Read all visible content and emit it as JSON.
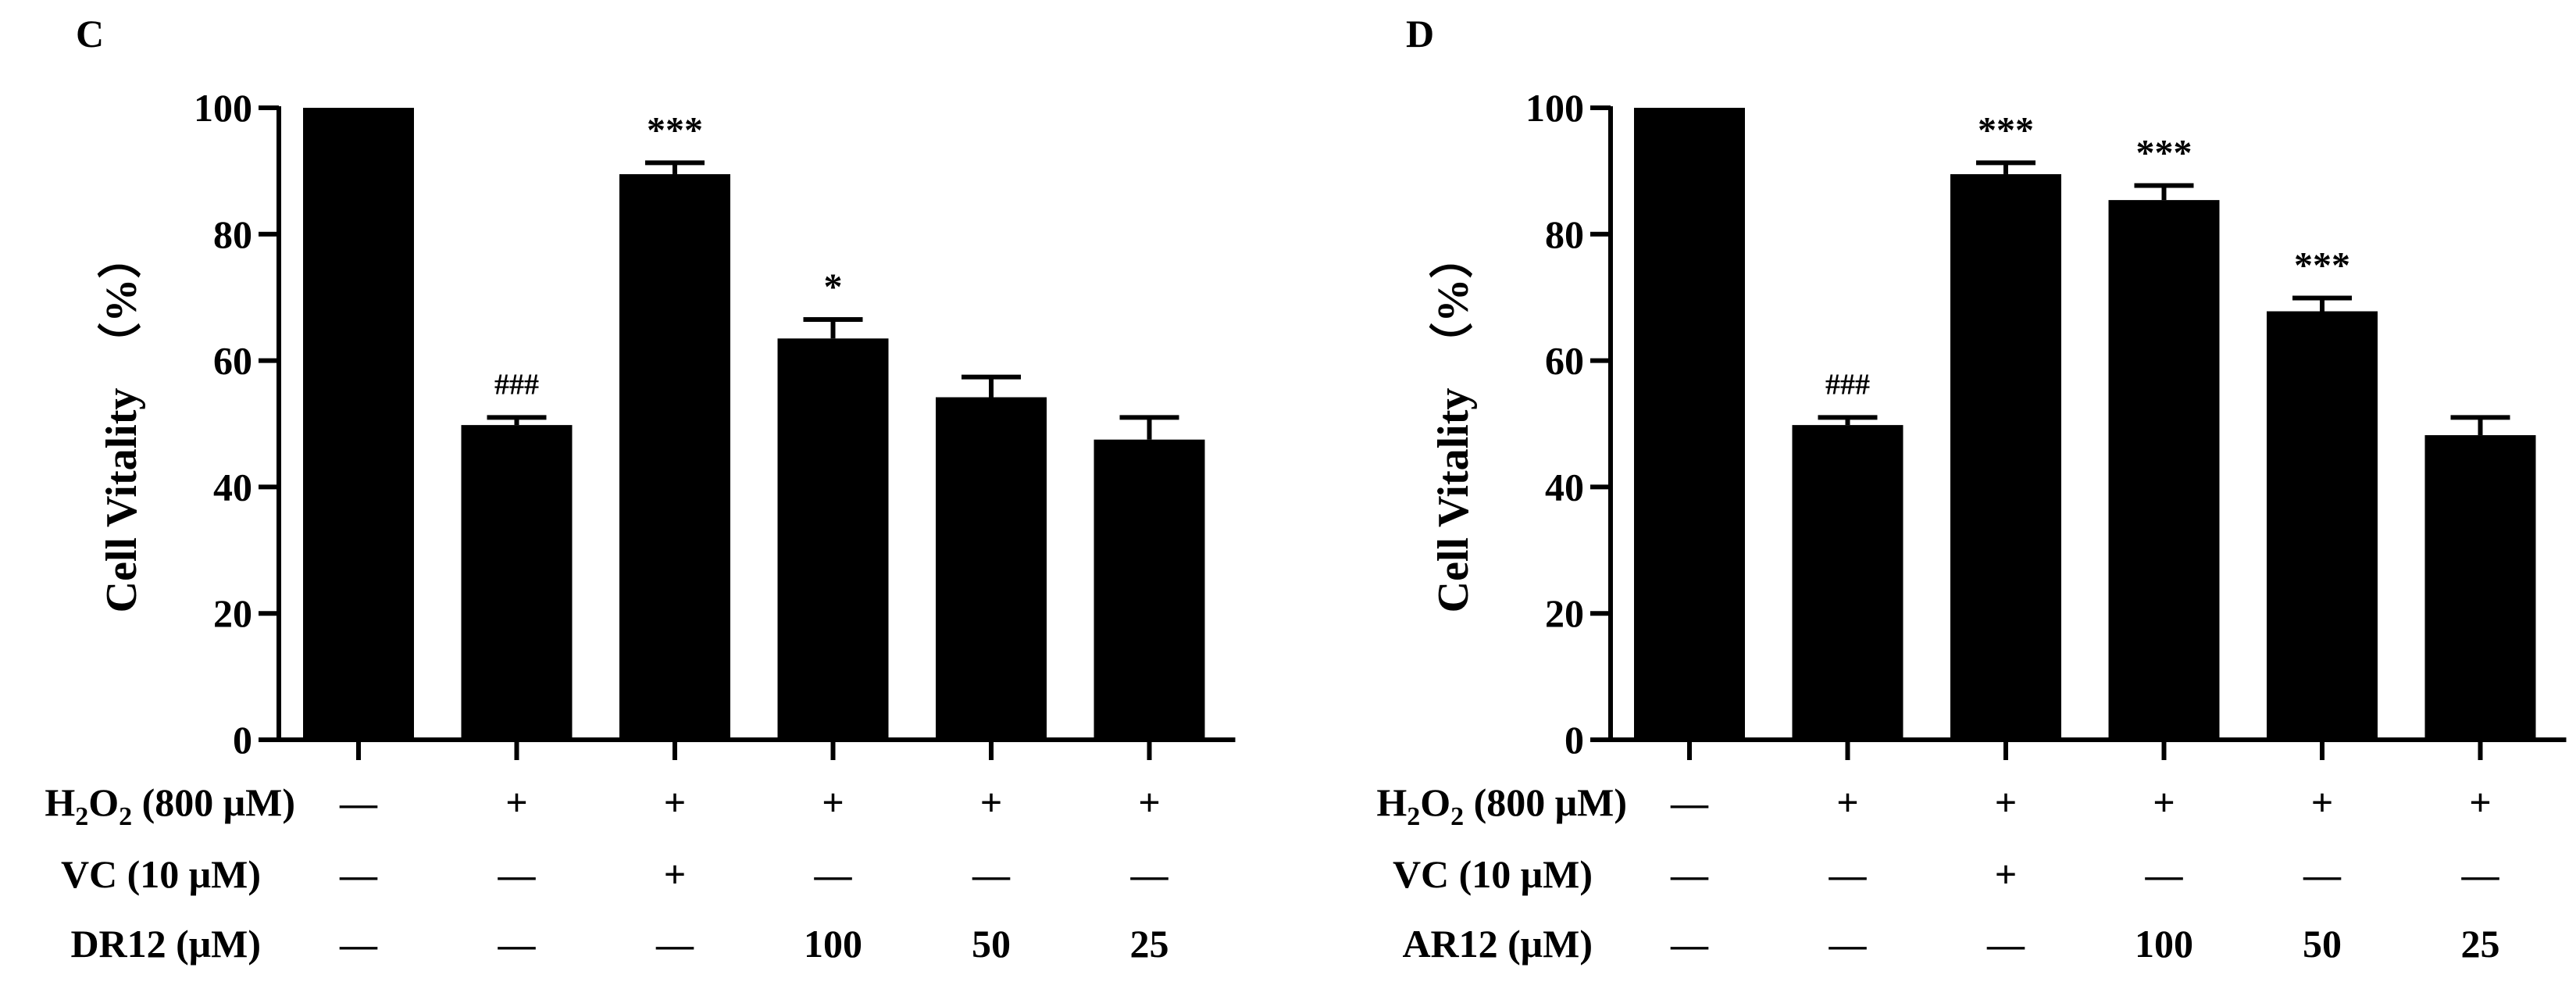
{
  "chart_data": [
    {
      "type": "bar",
      "panel_label": "C",
      "ylabel": "Cell Vitality  （%）",
      "ylim": [
        0,
        100
      ],
      "yticks": [
        "0",
        "20",
        "40",
        "60",
        "80",
        "100"
      ],
      "values": [
        100,
        49.8,
        89.5,
        63.5,
        54.2,
        47.5
      ],
      "errors": [
        0,
        1.2,
        1.8,
        3.0,
        3.2,
        3.5
      ],
      "annotations": [
        "",
        "###",
        "***",
        "*",
        "",
        ""
      ],
      "conditions": [
        {
          "label_main": "H",
          "label_sub": "2",
          "label_o": "O",
          "label_sub2": "2",
          "label_rest": " (800 μM)",
          "values": [
            "—",
            "+",
            "+",
            "+",
            "+",
            "+"
          ]
        },
        {
          "label": "VC (10 μM)",
          "values": [
            "—",
            "—",
            "+",
            "—",
            "—",
            "—"
          ]
        },
        {
          "label": "DR12 (μM)",
          "values": [
            "—",
            "—",
            "—",
            "100",
            "50",
            "25"
          ]
        }
      ]
    },
    {
      "type": "bar",
      "panel_label": "D",
      "ylabel": "Cell Vitality  （%）",
      "ylim": [
        0,
        100
      ],
      "yticks": [
        "0",
        "20",
        "40",
        "60",
        "80",
        "100"
      ],
      "values": [
        100,
        49.8,
        89.5,
        85.4,
        67.8,
        48.2
      ],
      "errors": [
        0,
        1.2,
        1.8,
        2.3,
        2.1,
        2.8
      ],
      "annotations": [
        "",
        "###",
        "***",
        "***",
        "***",
        ""
      ],
      "conditions": [
        {
          "label_main": "H",
          "label_sub": "2",
          "label_o": "O",
          "label_sub2": "2",
          "label_rest": " (800 μM)",
          "values": [
            "—",
            "+",
            "+",
            "+",
            "+",
            "+"
          ]
        },
        {
          "label": "VC (10 μM)",
          "values": [
            "—",
            "—",
            "+",
            "—",
            "—",
            "—"
          ]
        },
        {
          "label": "AR12 (μM)",
          "values": [
            "—",
            "—",
            "—",
            "100",
            "50",
            "25"
          ]
        }
      ]
    }
  ]
}
